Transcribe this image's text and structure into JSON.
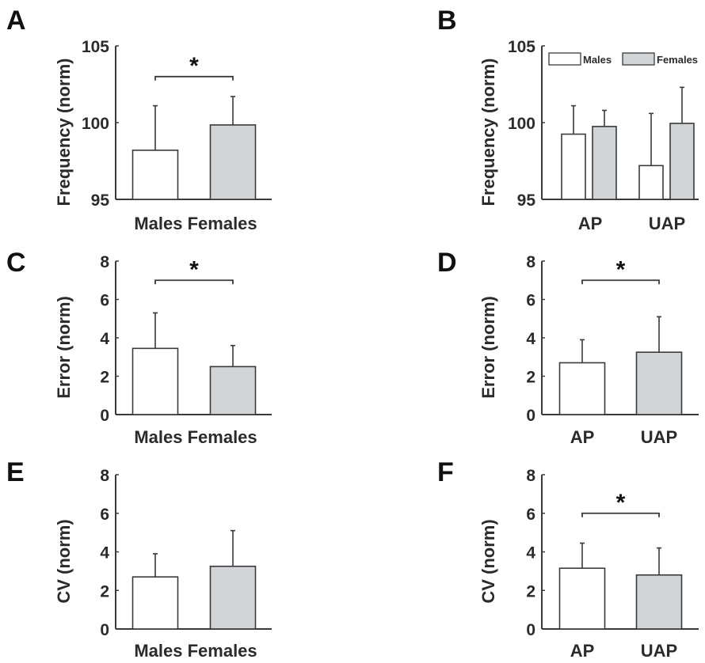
{
  "colors": {
    "male_fill": "#ffffff",
    "female_fill": "#d2d5d8",
    "stroke": "#3a3a3a"
  },
  "chart_data": [
    {
      "panel": "A",
      "type": "bar",
      "title": "",
      "xlabel": "",
      "ylabel": "Frequency (norm)",
      "ylim": [
        95,
        105
      ],
      "yticks": [
        95,
        100,
        105
      ],
      "categories": [
        "Males",
        "Females"
      ],
      "values": [
        98.2,
        99.85
      ],
      "errors": [
        2.9,
        1.85
      ],
      "fills": [
        "male",
        "female"
      ],
      "significance": {
        "from": 0,
        "to": 1,
        "level": 103.0,
        "label": "*"
      },
      "legend": null
    },
    {
      "panel": "B",
      "type": "bar",
      "title": "",
      "xlabel": "",
      "ylabel": "Frequency (norm)",
      "ylim": [
        95,
        105
      ],
      "yticks": [
        95,
        100,
        105
      ],
      "categories": [
        "AP",
        "UAP"
      ],
      "series": [
        {
          "name": "Males",
          "fill": "male",
          "values": [
            99.25,
            97.2
          ],
          "errors": [
            1.85,
            3.4
          ]
        },
        {
          "name": "Females",
          "fill": "female",
          "values": [
            99.75,
            99.95
          ],
          "errors": [
            1.05,
            2.35
          ]
        }
      ],
      "significance": null,
      "legend": {
        "placement": "top",
        "entries": [
          "Males",
          "Females"
        ]
      }
    },
    {
      "panel": "C",
      "type": "bar",
      "title": "",
      "xlabel": "",
      "ylabel": "Error (norm)",
      "ylim": [
        0,
        8
      ],
      "yticks": [
        0,
        2,
        4,
        6,
        8
      ],
      "categories": [
        "Males",
        "Females"
      ],
      "values": [
        3.45,
        2.5
      ],
      "errors": [
        1.85,
        1.1
      ],
      "fills": [
        "male",
        "female"
      ],
      "significance": {
        "from": 0,
        "to": 1,
        "level": 7.0,
        "label": "*"
      },
      "legend": null
    },
    {
      "panel": "D",
      "type": "bar",
      "title": "",
      "xlabel": "",
      "ylabel": "Error (norm)",
      "ylim": [
        0,
        8
      ],
      "yticks": [
        0,
        2,
        4,
        6,
        8
      ],
      "categories": [
        "AP",
        "UAP"
      ],
      "values": [
        2.7,
        3.25
      ],
      "errors": [
        1.2,
        1.85
      ],
      "fills": [
        "male",
        "female"
      ],
      "significance": {
        "from": 0,
        "to": 1,
        "level": 7.0,
        "label": "*"
      },
      "legend": null
    },
    {
      "panel": "E",
      "type": "bar",
      "title": "",
      "xlabel": "",
      "ylabel": "CV (norm)",
      "ylim": [
        0,
        8
      ],
      "yticks": [
        0,
        2,
        4,
        6,
        8
      ],
      "categories": [
        "Males",
        "Females"
      ],
      "values": [
        2.7,
        3.25
      ],
      "errors": [
        1.2,
        1.85
      ],
      "fills": [
        "male",
        "female"
      ],
      "significance": null,
      "legend": null
    },
    {
      "panel": "F",
      "type": "bar",
      "title": "",
      "xlabel": "",
      "ylabel": "CV (norm)",
      "ylim": [
        0,
        8
      ],
      "yticks": [
        0,
        2,
        4,
        6,
        8
      ],
      "categories": [
        "AP",
        "UAP"
      ],
      "values": [
        3.15,
        2.8
      ],
      "errors": [
        1.3,
        1.4
      ],
      "fills": [
        "male",
        "female"
      ],
      "significance": {
        "from": 0,
        "to": 1,
        "level": 6.0,
        "label": "*"
      },
      "legend": null
    }
  ]
}
